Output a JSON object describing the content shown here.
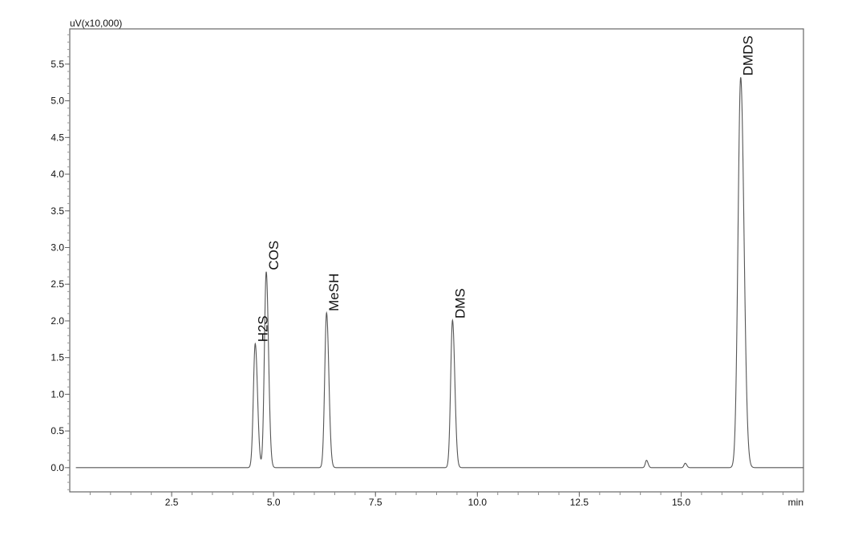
{
  "chart_data": {
    "type": "line",
    "title": "",
    "ylabel": "uV(x10,000)",
    "xlabel": "min",
    "xlim": [
      0,
      18.0
    ],
    "ylim": [
      -0.33,
      5.98
    ],
    "x_ticks": [
      2.5,
      5.0,
      7.5,
      10.0,
      12.5,
      15.0
    ],
    "x_tick_labels": [
      "2.5",
      "5.0",
      "7.5",
      "10.0",
      "12.5",
      "15.0"
    ],
    "y_ticks": [
      0.0,
      0.5,
      1.0,
      1.5,
      2.0,
      2.5,
      3.0,
      3.5,
      4.0,
      4.5,
      5.0,
      5.5
    ],
    "y_tick_labels": [
      "0.0",
      "0.5",
      "1.0",
      "1.5",
      "2.0",
      "2.5",
      "3.0",
      "3.5",
      "4.0",
      "4.5",
      "5.0",
      "5.5"
    ],
    "grid": false,
    "line_color": "#555555",
    "peaks": [
      {
        "name": "H2S",
        "retention_time": 4.55,
        "height": 1.69
      },
      {
        "name": "COS",
        "retention_time": 4.82,
        "height": 2.67
      },
      {
        "name": "MeSH",
        "retention_time": 6.3,
        "height": 2.11
      },
      {
        "name": "DMS",
        "retention_time": 9.39,
        "height": 2.01
      },
      {
        "name": "",
        "retention_time": 14.15,
        "height": 0.1
      },
      {
        "name": "",
        "retention_time": 15.1,
        "height": 0.06
      },
      {
        "name": "DMDS",
        "retention_time": 16.46,
        "height": 5.32
      }
    ]
  }
}
